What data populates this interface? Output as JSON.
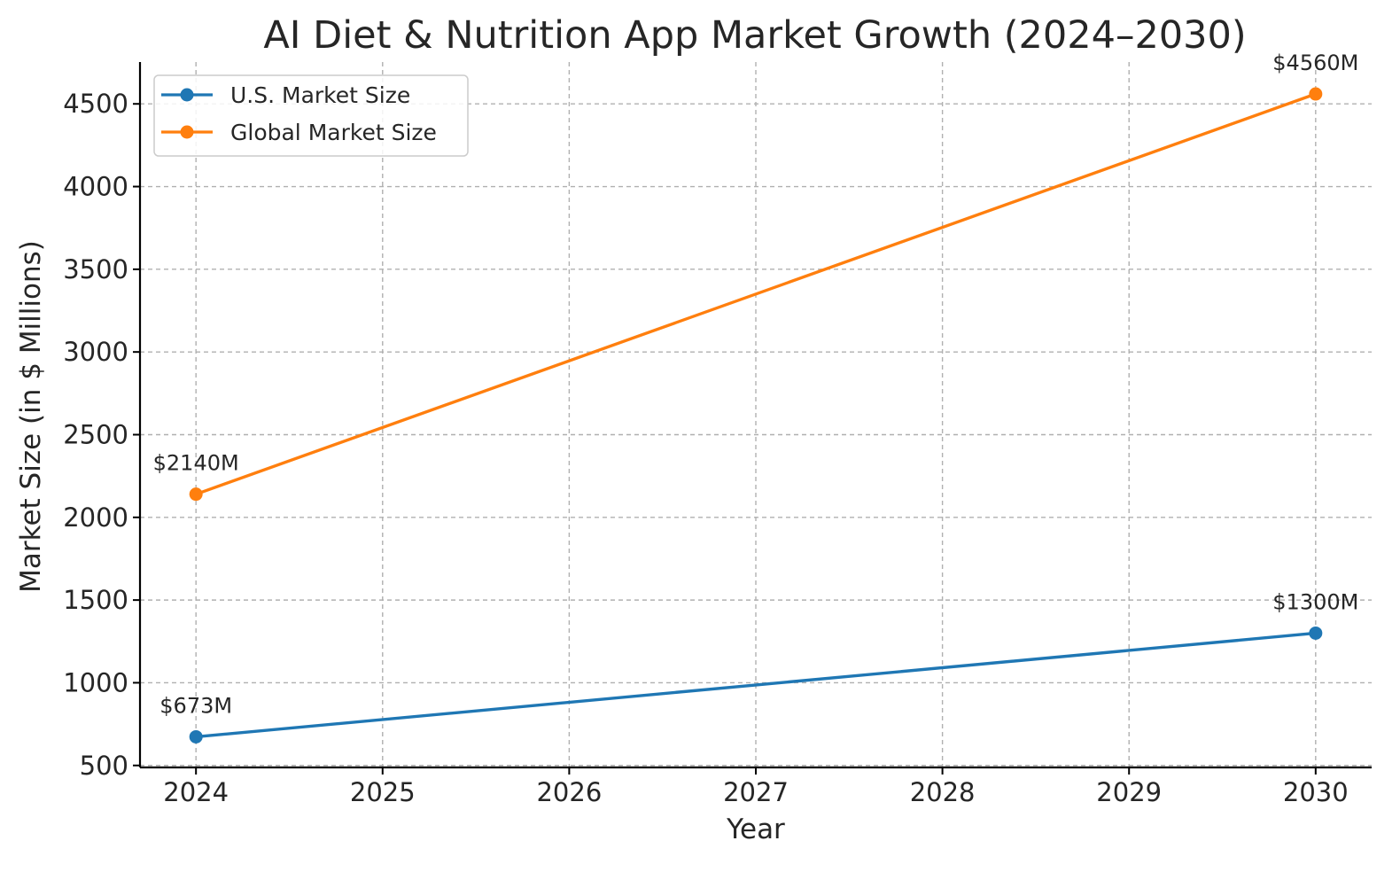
{
  "chart_data": {
    "type": "line",
    "title": "AI Diet & Nutrition App Market Growth (2024–2030)",
    "xlabel": "Year",
    "ylabel": "Market Size (in $ Millions)",
    "x": [
      2024,
      2030
    ],
    "x_ticks": [
      "2024",
      "2025",
      "2026",
      "2027",
      "2028",
      "2029",
      "2030"
    ],
    "y_ticks": [
      "500",
      "1000",
      "1500",
      "2000",
      "2500",
      "3000",
      "3500",
      "4000",
      "4500"
    ],
    "xlim": [
      2023.7,
      2030.3
    ],
    "ylim": [
      488,
      4753
    ],
    "grid": true,
    "legend_position": "top-left",
    "series": [
      {
        "name": "U.S. Market Size",
        "color": "#1f77b4",
        "values": [
          673,
          1300
        ],
        "labels": [
          "$673M",
          "$1300M"
        ]
      },
      {
        "name": "Global Market Size",
        "color": "#ff7f0e",
        "values": [
          2140,
          4560
        ],
        "labels": [
          "$2140M",
          "$4560M"
        ]
      }
    ]
  }
}
